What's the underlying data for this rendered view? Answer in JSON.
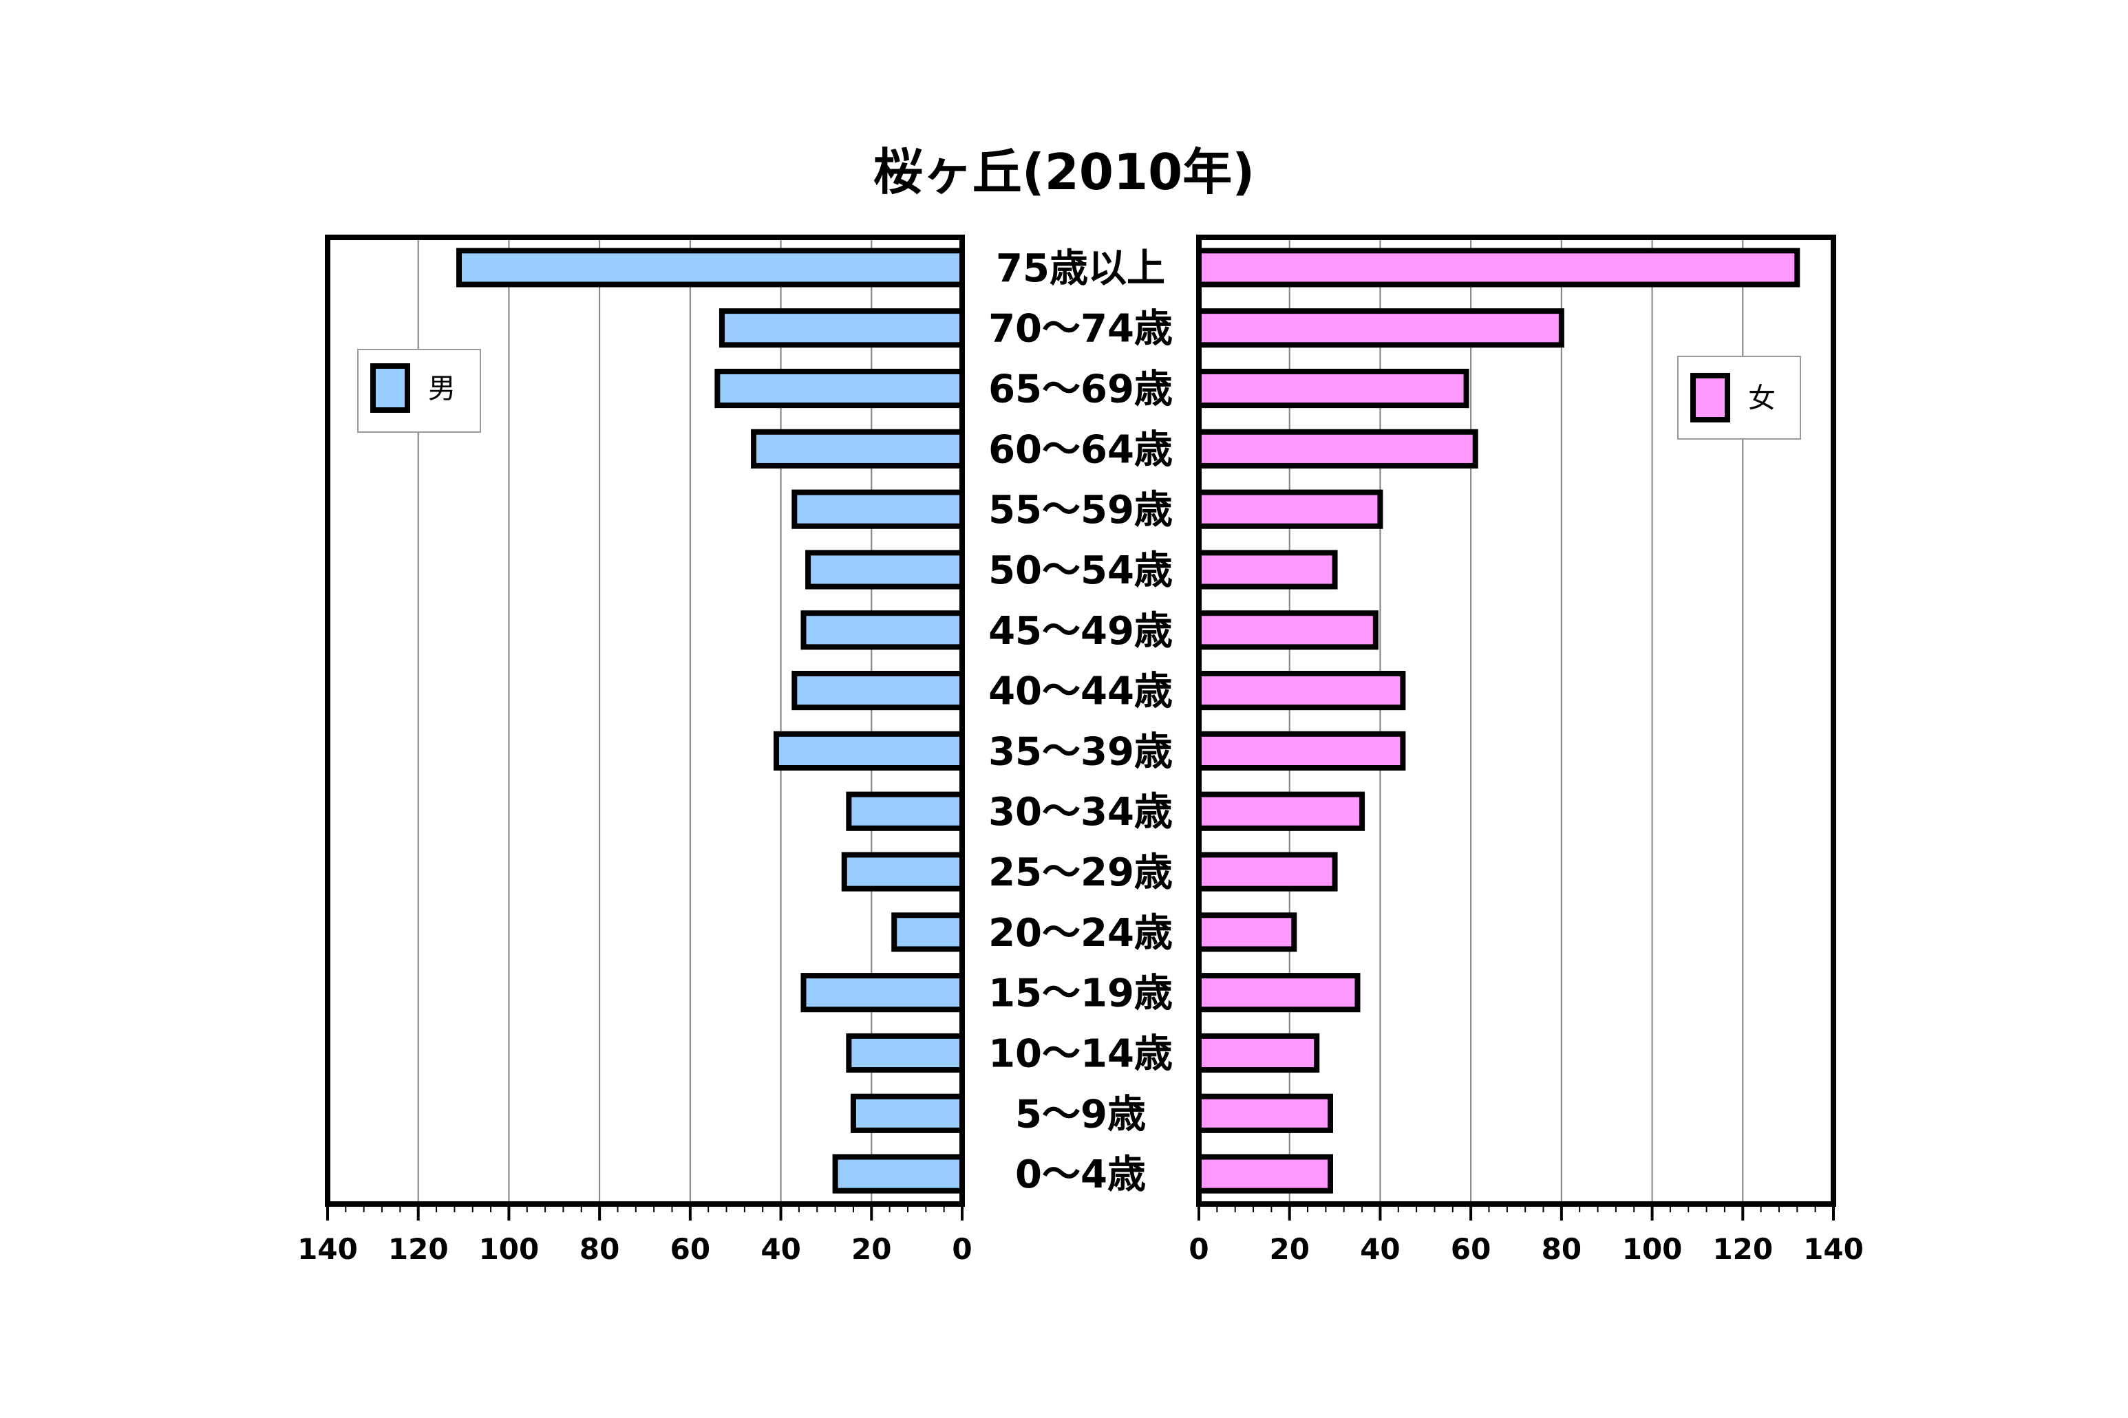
{
  "chart_data": {
    "type": "bar",
    "title": "桜ヶ丘(2010年)",
    "categories": [
      "75歳以上",
      "70～74歳",
      "65～69歳",
      "60～64歳",
      "55～59歳",
      "50～54歳",
      "45～49歳",
      "40～44歳",
      "35～39歳",
      "30～34歳",
      "25～29歳",
      "20～24歳",
      "15～19歳",
      "10～14歳",
      "5～9歳",
      "0～4歳"
    ],
    "series": [
      {
        "name": "男",
        "color": "#99CCFF",
        "values": [
          111,
          53,
          54,
          46,
          37,
          34,
          35,
          37,
          41,
          25,
          26,
          15,
          35,
          25,
          24,
          28
        ]
      },
      {
        "name": "女",
        "color": "#FF99FF",
        "values": [
          132,
          80,
          59,
          61,
          40,
          30,
          39,
          45,
          45,
          36,
          30,
          21,
          35,
          26,
          29,
          29
        ]
      }
    ],
    "xlim": [
      0,
      140
    ],
    "x_ticks": [
      "140",
      "120",
      "100",
      "80",
      "60",
      "40",
      "20",
      "0"
    ],
    "x_ticks_right": [
      "0",
      "20",
      "40",
      "60",
      "80",
      "100",
      "120",
      "140"
    ],
    "grid": true,
    "legend_male_position": "top-left",
    "legend_female_position": "top-right"
  }
}
